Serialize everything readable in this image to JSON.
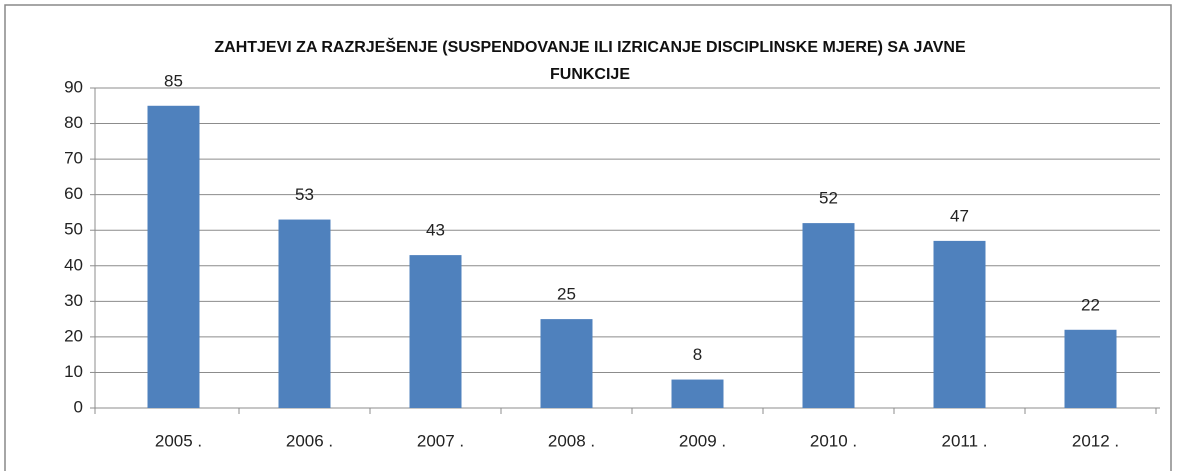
{
  "chart_data": {
    "type": "bar",
    "title": "ZAHTJEVI ZA RAZRJEŠENJE (SUSPENDOVANJE ILI IZRICANJE DISCIPLINSKE MJERE) SA JAVNE FUNKCIJE",
    "categories": [
      "2005 .",
      "2006 .",
      "2007 .",
      "2008 .",
      "2009 .",
      "2010 .",
      "2011 .",
      "2012 ."
    ],
    "values": [
      85,
      53,
      43,
      25,
      8,
      52,
      47,
      22
    ],
    "color": "#4f81bd",
    "ylim": [
      0,
      90
    ],
    "yticks": [
      0,
      10,
      20,
      30,
      40,
      50,
      60,
      70,
      80,
      90
    ],
    "grid": true
  }
}
